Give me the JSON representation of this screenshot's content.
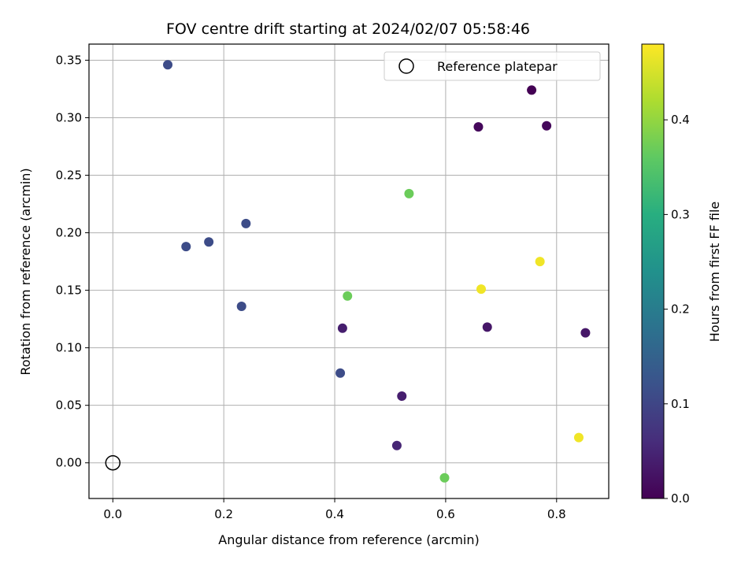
{
  "chart_data": {
    "type": "scatter",
    "title": "FOV centre drift starting at 2024/02/07 05:58:46",
    "xlabel": "Angular distance from reference (arcmin)",
    "ylabel": "Rotation from reference (arcmin)",
    "xlim": [
      -0.043,
      0.894
    ],
    "ylim": [
      -0.031,
      0.364
    ],
    "xticks": [
      0.0,
      0.2,
      0.4,
      0.6,
      0.8
    ],
    "xtick_labels": [
      "0.0",
      "0.2",
      "0.4",
      "0.6",
      "0.8"
    ],
    "yticks": [
      0.0,
      0.05,
      0.1,
      0.15,
      0.2,
      0.25,
      0.3,
      0.35
    ],
    "ytick_labels": [
      "0.00",
      "0.05",
      "0.10",
      "0.15",
      "0.20",
      "0.25",
      "0.30",
      "0.35"
    ],
    "grid": true,
    "legend": {
      "placement": "upper right",
      "entries": [
        "Reference platepar"
      ]
    },
    "reference_point": {
      "x": 0.0,
      "y": 0.0
    },
    "colorbar": {
      "label": "Hours from first FF file",
      "colormap": "viridis",
      "range": [
        0.0,
        0.48
      ],
      "ticks": [
        0.0,
        0.1,
        0.2,
        0.3,
        0.4
      ],
      "tick_labels": [
        "0.0",
        "0.1",
        "0.2",
        "0.3",
        "0.4"
      ]
    },
    "points": [
      {
        "x": 0.755,
        "y": 0.324,
        "hours": 0.0
      },
      {
        "x": 0.659,
        "y": 0.292,
        "hours": 0.01
      },
      {
        "x": 0.782,
        "y": 0.293,
        "hours": 0.01
      },
      {
        "x": 0.852,
        "y": 0.113,
        "hours": 0.03
      },
      {
        "x": 0.675,
        "y": 0.118,
        "hours": 0.03
      },
      {
        "x": 0.414,
        "y": 0.117,
        "hours": 0.04
      },
      {
        "x": 0.521,
        "y": 0.058,
        "hours": 0.04
      },
      {
        "x": 0.512,
        "y": 0.015,
        "hours": 0.05
      },
      {
        "x": 0.099,
        "y": 0.346,
        "hours": 0.11
      },
      {
        "x": 0.132,
        "y": 0.188,
        "hours": 0.11
      },
      {
        "x": 0.173,
        "y": 0.192,
        "hours": 0.11
      },
      {
        "x": 0.24,
        "y": 0.208,
        "hours": 0.11
      },
      {
        "x": 0.232,
        "y": 0.136,
        "hours": 0.11
      },
      {
        "x": 0.41,
        "y": 0.078,
        "hours": 0.11
      },
      {
        "x": 0.534,
        "y": 0.234,
        "hours": 0.37
      },
      {
        "x": 0.423,
        "y": 0.145,
        "hours": 0.37
      },
      {
        "x": 0.598,
        "y": -0.013,
        "hours": 0.37
      },
      {
        "x": 0.664,
        "y": 0.151,
        "hours": 0.47
      },
      {
        "x": 0.77,
        "y": 0.175,
        "hours": 0.47
      },
      {
        "x": 0.84,
        "y": 0.022,
        "hours": 0.47
      }
    ]
  }
}
